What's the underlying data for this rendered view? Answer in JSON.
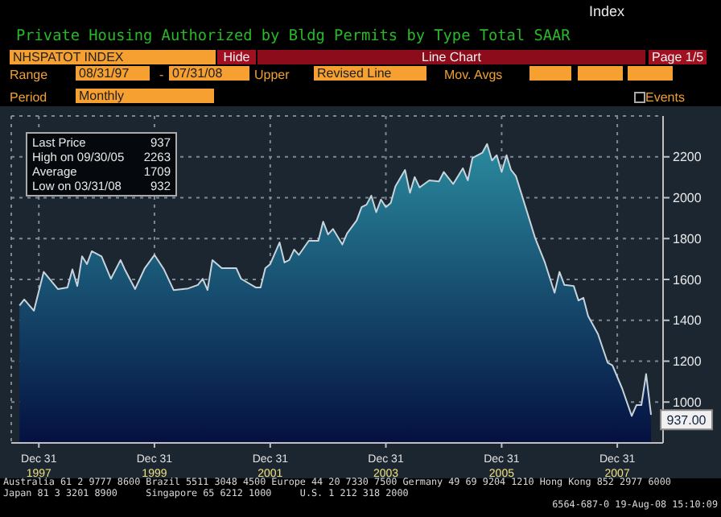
{
  "chart_data": {
    "type": "area",
    "title": "Private Housing Authorized by Bldg Permits by Type Total SAAR",
    "x": [
      "1997-08-31",
      "1997-09-30",
      "1997-11-30",
      "1998-01-31",
      "1998-04-30",
      "1998-06-30",
      "1998-07-31",
      "1998-08-31",
      "1998-09-30",
      "1998-10-31",
      "1998-11-30",
      "1999-01-31",
      "1999-03-31",
      "1999-05-31",
      "1999-06-30",
      "1999-08-31",
      "1999-10-31",
      "1999-12-31",
      "2000-02-29",
      "2000-04-30",
      "2000-07-31",
      "2000-09-30",
      "2000-10-31",
      "2000-11-30",
      "2000-12-31",
      "2001-02-28",
      "2001-05-31",
      "2001-06-30",
      "2001-09-30",
      "2001-10-31",
      "2001-11-30",
      "2001-12-31",
      "2002-02-28",
      "2002-03-31",
      "2002-04-30",
      "2002-05-31",
      "2002-06-30",
      "2002-08-31",
      "2002-10-31",
      "2002-11-30",
      "2002-12-31",
      "2003-01-31",
      "2003-03-31",
      "2003-04-30",
      "2003-06-30",
      "2003-07-31",
      "2003-08-31",
      "2003-09-30",
      "2003-10-31",
      "2003-11-30",
      "2003-12-31",
      "2004-01-31",
      "2004-02-29",
      "2004-04-30",
      "2004-05-31",
      "2004-06-30",
      "2004-07-31",
      "2004-09-30",
      "2004-11-30",
      "2004-12-31",
      "2005-02-28",
      "2005-04-30",
      "2005-05-31",
      "2005-06-30",
      "2005-08-31",
      "2005-09-30",
      "2005-10-31",
      "2005-11-30",
      "2005-12-31",
      "2006-01-31",
      "2006-02-28",
      "2006-03-31",
      "2006-05-31",
      "2006-07-31",
      "2006-09-30",
      "2006-11-30",
      "2006-12-31",
      "2007-01-31",
      "2007-03-31",
      "2007-04-30",
      "2007-05-31",
      "2007-06-30",
      "2007-08-31",
      "2007-10-31",
      "2007-11-30",
      "2008-01-31",
      "2008-03-31",
      "2008-04-30",
      "2008-05-31",
      "2008-06-30",
      "2008-07-31"
    ],
    "series": [
      {
        "color": "#2a8a9e",
        "values": [
          1472,
          1502,
          1447,
          1637,
          1553,
          1561,
          1649,
          1568,
          1713,
          1675,
          1738,
          1713,
          1603,
          1695,
          1644,
          1553,
          1655,
          1720,
          1649,
          1548,
          1556,
          1573,
          1603,
          1548,
          1695,
          1655,
          1655,
          1603,
          1561,
          1561,
          1655,
          1675,
          1781,
          1683,
          1695,
          1746,
          1720,
          1789,
          1789,
          1883,
          1820,
          1847,
          1771,
          1825,
          1889,
          1954,
          1966,
          2010,
          1929,
          1991,
          1954,
          1974,
          2055,
          2136,
          2024,
          2101,
          2050,
          2085,
          2080,
          2126,
          2067,
          2144,
          2085,
          2195,
          2220,
          2263,
          2182,
          2208,
          2126,
          2208,
          2136,
          2106,
          1954,
          1801,
          1683,
          1535,
          1637,
          1573,
          1568,
          1497,
          1510,
          1421,
          1333,
          1193,
          1180,
          1066,
          932,
          985,
          985,
          1137,
          937
        ]
      }
    ],
    "xlim": [
      "1997-07-10",
      "2008-10-15"
    ],
    "xticks": [
      {
        "value": "1997-12-31",
        "label": "Dec 31\n1997"
      },
      {
        "value": "1999-12-31",
        "label": "Dec 31\n1999"
      },
      {
        "value": "2001-12-31",
        "label": "Dec 31\n2001"
      },
      {
        "value": "2003-12-31",
        "label": "Dec 31\n2003"
      },
      {
        "value": "2005-12-31",
        "label": "Dec 31\n2005"
      },
      {
        "value": "2007-12-31",
        "label": "Dec 31\n2007"
      }
    ],
    "ylim": [
      800,
      2400
    ],
    "yticks": [
      1000,
      1200,
      1400,
      1600,
      1800,
      2000,
      2200
    ],
    "grid": true,
    "legend": false,
    "annotations": [
      "Index",
      "NHSPATOT INDEX",
      "Hide",
      "Line Chart",
      "Page 1/5",
      "Range",
      "08/31/97",
      "-",
      "07/31/08",
      "Upper",
      "Revised Line",
      "Mov. Avgs",
      "Period",
      "Monthly",
      "Events",
      "Last Price",
      "937",
      "High on 09/30/05",
      "2263",
      "Average",
      "1709",
      "Low on 03/31/08",
      "932",
      "Australia 61 2 9777 8600 Brazil 5511 3048 4500 Europe 44 20 7330 7500 Germany 49 69 9204 1210 Hong Kong 852 2977 6000",
      "Japan 81 3 3201 8900     Singapore 65 6212 1000     U.S. 1 212 318 2000",
      "6564-687-0 19-Aug-08 15:10:09",
      {
        "text": "937.00",
        "x": "2008-07-31",
        "y": 937
      }
    ]
  }
}
